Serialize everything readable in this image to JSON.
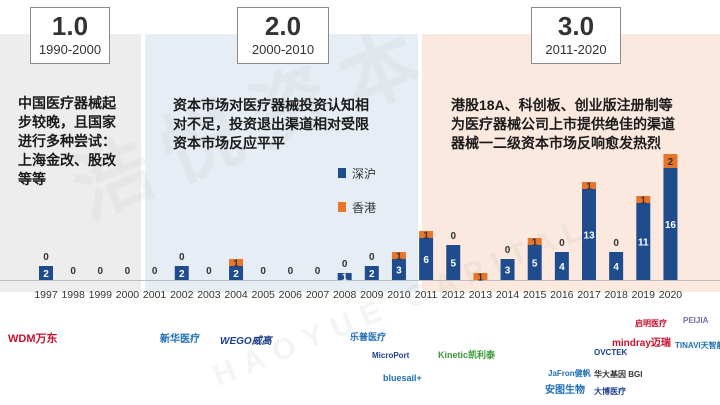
{
  "eras": [
    {
      "num": "1.0",
      "range": "1990-2000",
      "desc_lines": [
        "中国医疗器械起",
        "步较晚，且国家",
        "进行多种尝试：",
        "上海金改、股改",
        "等等"
      ]
    },
    {
      "num": "2.0",
      "range": "2000-2010",
      "desc_lines": [
        "资本市场对医疗器械投资认知相",
        "对不足，投资退出渠道相对受限",
        "资本市场反应平平"
      ]
    },
    {
      "num": "3.0",
      "range": "2011-2020",
      "desc_lines": [
        "港股18A、科创板、创业版注册制等",
        "为医疗器械公司上市提供绝佳的渠道",
        "器械一二级资本市场反响愈发热烈"
      ]
    }
  ],
  "legend": [
    {
      "label": "深沪",
      "color": "#1e4c8c"
    },
    {
      "label": "香港",
      "color": "#e8752a"
    }
  ],
  "watermark": {
    "cn": "浩悦资本",
    "en": "HAOYUE CAPITAL"
  },
  "chart_data": {
    "type": "bar",
    "stacked": true,
    "categories": [
      "1997",
      "1998",
      "1999",
      "2000",
      "2001",
      "2002",
      "2003",
      "2004",
      "2005",
      "2006",
      "2007",
      "2008",
      "2009",
      "2010",
      "2011",
      "2012",
      "2013",
      "2014",
      "2015",
      "2016",
      "2017",
      "2018",
      "2019",
      "2020"
    ],
    "series": [
      {
        "name": "深沪",
        "color": "#1e4c8c",
        "values": [
          2,
          0,
          0,
          0,
          0,
          2,
          0,
          2,
          0,
          0,
          0,
          1,
          2,
          3,
          6,
          5,
          0,
          3,
          5,
          4,
          13,
          4,
          11,
          16
        ]
      },
      {
        "name": "香港",
        "color": "#e8752a",
        "values": [
          0,
          0,
          0,
          0,
          0,
          0,
          0,
          1,
          0,
          0,
          0,
          0,
          0,
          1,
          1,
          0,
          1,
          0,
          1,
          0,
          1,
          0,
          1,
          2
        ]
      }
    ],
    "ylim": [
      0,
      20
    ]
  },
  "logos": [
    {
      "text": "WDM万东",
      "color": "#c8102e"
    },
    {
      "text": "新华医疗",
      "color": "#1f6fb5"
    },
    {
      "text": "WEGO威高",
      "color": "#1f3f8c"
    },
    {
      "text": "乐普医疗",
      "color": "#1f6fb5"
    },
    {
      "text": "MicroPort",
      "color": "#1f3f8c"
    },
    {
      "text": "bluesail+",
      "color": "#1f6fb5"
    },
    {
      "text": "Kinetic凯利泰",
      "color": "#3a9a3a"
    },
    {
      "text": "JaFron健帆",
      "color": "#1f6fb5"
    },
    {
      "text": "安图生物",
      "color": "#1f6fb5"
    },
    {
      "text": "OVCTEK",
      "color": "#1f3f8c"
    },
    {
      "text": "华大基因 BGI",
      "color": "#333333"
    },
    {
      "text": "大博医疗",
      "color": "#1f3f8c"
    },
    {
      "text": "启明医疗",
      "color": "#c8102e"
    },
    {
      "text": "mindray迈瑞",
      "color": "#c8102e"
    },
    {
      "text": "PEIJIA",
      "color": "#7a6aa8"
    },
    {
      "text": "TINAVI天智航",
      "color": "#1f6fb5"
    }
  ]
}
